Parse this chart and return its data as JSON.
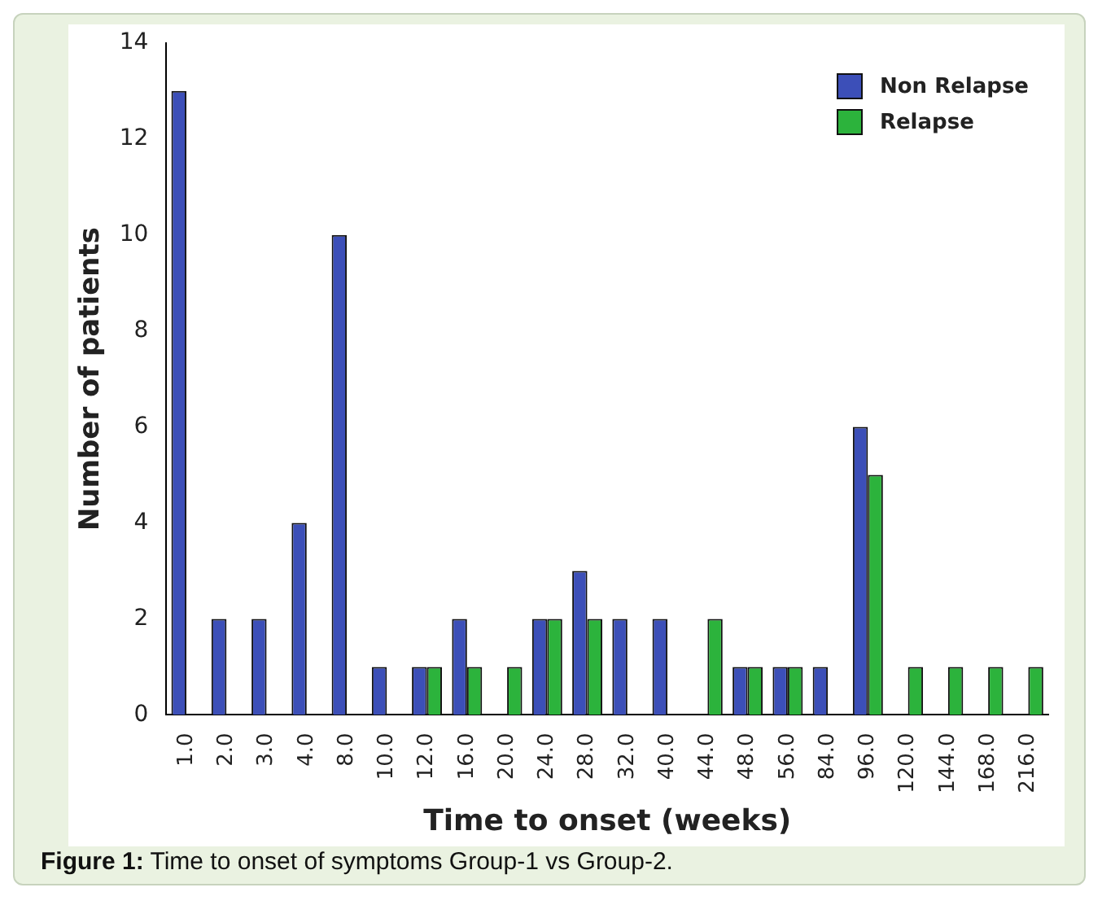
{
  "chart_data": {
    "type": "bar",
    "xlabel": "Time to onset (weeks)",
    "ylabel": "Number of patients",
    "categories": [
      "1.0",
      "2.0",
      "3.0",
      "4.0",
      "8.0",
      "10.0",
      "12.0",
      "16.0",
      "20.0",
      "24.0",
      "28.0",
      "32.0",
      "40.0",
      "44.0",
      "48.0",
      "56.0",
      "84.0",
      "96.0",
      "120.0",
      "144.0",
      "168.0",
      "216.0"
    ],
    "series": [
      {
        "name": "Non Relapse",
        "color": "#3c4fb8",
        "values": [
          13,
          2,
          2,
          4,
          10,
          1,
          1,
          2,
          0,
          2,
          3,
          2,
          2,
          0,
          1,
          1,
          1,
          6,
          0,
          0,
          0,
          0
        ]
      },
      {
        "name": "Relapse",
        "color": "#2cb33c",
        "values": [
          0,
          0,
          0,
          0,
          0,
          0,
          1,
          1,
          1,
          2,
          2,
          0,
          0,
          2,
          1,
          1,
          0,
          5,
          1,
          1,
          1,
          1
        ]
      }
    ],
    "ylim": [
      0,
      14
    ],
    "yticks": [
      0,
      2,
      4,
      6,
      8,
      10,
      12,
      14
    ],
    "grid": false,
    "legend": "top right",
    "annotations": [
      "Figure 1: Time to onset of symptoms Group-1 vs Group-2."
    ]
  }
}
